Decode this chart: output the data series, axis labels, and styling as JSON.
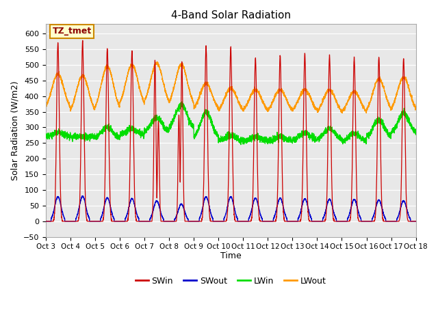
{
  "title": "4-Band Solar Radiation",
  "ylabel": "Solar Radiation (W/m2)",
  "xlabel": "Time",
  "ylim": [
    -50,
    630
  ],
  "xlim": [
    0,
    15
  ],
  "plot_bg_color": "#e0e0e0",
  "xtick_labels": [
    "Oct 3",
    "Oct 4",
    "Oct 5",
    "Oct 6",
    "Oct 7",
    "Oct 8",
    "Oct 9",
    "Oct 10",
    "Oct 11",
    "Oct 12",
    "Oct 13",
    "Oct 14",
    "Oct 15",
    "Oct 16",
    "Oct 17",
    "Oct 18"
  ],
  "ytick_values": [
    -50,
    0,
    50,
    100,
    150,
    200,
    250,
    300,
    350,
    400,
    450,
    500,
    550,
    600
  ],
  "colors": {
    "SWin": "#cc0000",
    "SWout": "#0000cc",
    "LWin": "#00dd00",
    "LWout": "#ff9900"
  },
  "annotation_text": "TZ_tmet",
  "annotation_bg": "#ffffcc",
  "annotation_border": "#cc8800",
  "SWin_peaks": [
    570,
    575,
    552,
    545,
    515,
    510,
    558,
    555,
    520,
    530,
    535,
    527,
    522,
    525,
    520
  ],
  "SWout_peaks": [
    78,
    80,
    75,
    72,
    65,
    55,
    78,
    78,
    74,
    74,
    72,
    70,
    70,
    68,
    65
  ],
  "LWout_night": [
    350,
    340,
    345,
    360,
    365,
    360,
    350,
    345,
    345,
    345,
    345,
    340,
    340,
    342,
    345
  ],
  "LWout_day_peak": [
    470,
    465,
    495,
    500,
    505,
    500,
    440,
    425,
    420,
    420,
    420,
    420,
    415,
    455,
    460
  ],
  "LWin_base": [
    270,
    270,
    265,
    275,
    285,
    295,
    265,
    255,
    255,
    255,
    258,
    260,
    255,
    265,
    280
  ],
  "LWin_peak_extra": [
    15,
    0,
    35,
    20,
    45,
    80,
    85,
    20,
    15,
    15,
    25,
    35,
    25,
    60,
    65
  ]
}
